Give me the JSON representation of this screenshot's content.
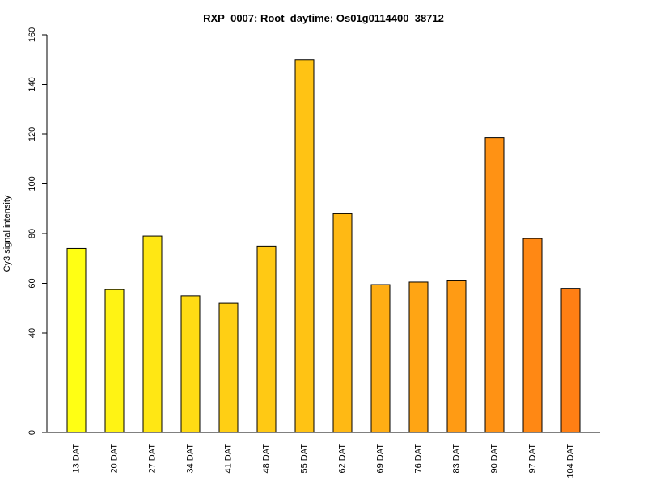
{
  "chart_data": {
    "type": "bar",
    "title": "RXP_0007: Root_daytime; Os01g0114400_38712",
    "xlabel": "",
    "ylabel": "Cy3 signal intensity",
    "categories": [
      "13 DAT",
      "20 DAT",
      "27 DAT",
      "34 DAT",
      "41 DAT",
      "48 DAT",
      "55 DAT",
      "62 DAT",
      "69 DAT",
      "76 DAT",
      "83 DAT",
      "90 DAT",
      "97 DAT",
      "104 DAT"
    ],
    "values": [
      74,
      57.5,
      79,
      55,
      52,
      75,
      150,
      88,
      59.5,
      60.5,
      61,
      118.5,
      78,
      58
    ],
    "colors": [
      "#ffff14",
      "#fff314",
      "#ffe714",
      "#ffdb14",
      "#ffcf14",
      "#ffc914",
      "#ffc314",
      "#ffb914",
      "#ffae14",
      "#ffa514",
      "#ff9b14",
      "#ff9214",
      "#ff8814",
      "#ff7f14"
    ],
    "ylim": [
      0,
      160
    ],
    "yticks": [
      0,
      40,
      60,
      80,
      100,
      120,
      140,
      160
    ],
    "grid": false,
    "legend": "none"
  }
}
